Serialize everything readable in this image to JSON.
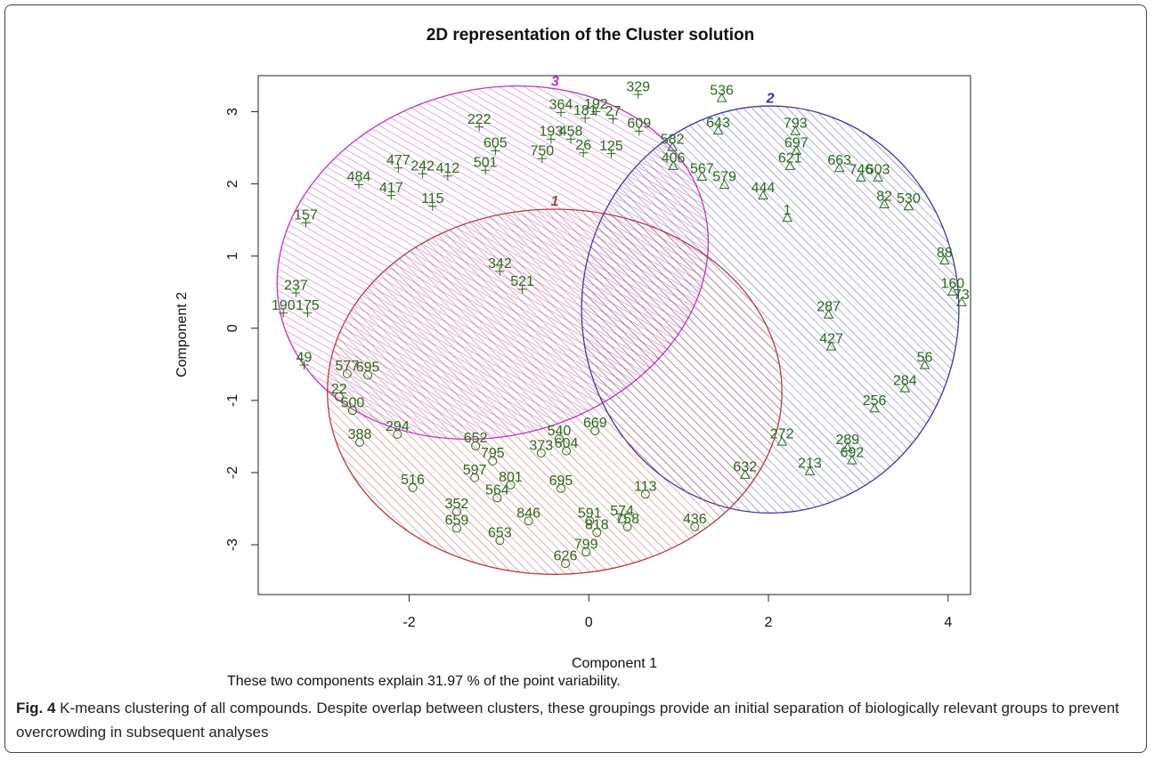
{
  "chart_data": {
    "type": "scatter",
    "title": "2D representation of the Cluster solution",
    "xlabel": "Component 1",
    "ylabel": "Component 2",
    "subtitle": "These two components explain 31.97 % of the point variability.",
    "xlim": [
      -3.68,
      4.25
    ],
    "ylim": [
      -3.69,
      3.5
    ],
    "xticks": [
      -2,
      0,
      2,
      4
    ],
    "yticks": [
      -3,
      -2,
      -1,
      0,
      1,
      2,
      3
    ],
    "point_color": "#2a6a1a",
    "series": [
      {
        "name": "3",
        "color": "#c232c2",
        "marker": "plus",
        "ellipse": {
          "cx": -1.07,
          "cy": 0.91,
          "rx": 2.43,
          "ry": 2.4,
          "angle": -15
        },
        "x": [
          0.55,
          -1.22,
          -0.31,
          0.08,
          -0.04,
          0.27,
          -1.04,
          -0.52,
          -0.42,
          -0.2,
          -0.06,
          -2.12,
          -1.85,
          -1.57,
          -1.15,
          -2.56,
          -2.2,
          -1.74,
          -3.15,
          -3.4,
          -3.13,
          -3.17,
          -3.26,
          -0.99,
          -0.74,
          0.25,
          0.56
        ],
        "y": [
          3.24,
          2.79,
          2.99,
          3.0,
          2.91,
          2.9,
          2.46,
          2.35,
          2.62,
          2.62,
          2.43,
          2.22,
          2.14,
          2.11,
          2.19,
          1.99,
          1.84,
          1.69,
          1.46,
          0.21,
          0.21,
          -0.51,
          0.49,
          0.79,
          0.54,
          2.42,
          2.73
        ],
        "labels": [
          "329",
          "222",
          "364",
          "192",
          "181",
          "27",
          "605",
          "750",
          "193",
          "458",
          "26",
          "477",
          "242",
          "412",
          "501",
          "484",
          "417",
          "115",
          "157",
          "190",
          "175",
          "49",
          "237",
          "342",
          "521",
          "125",
          "609"
        ]
      },
      {
        "name": "2",
        "color": "#3a35a8",
        "marker": "triangle",
        "ellipse": {
          "cx": 2.02,
          "cy": 0.26,
          "rx": 2.1,
          "ry": 2.82,
          "angle": 0
        },
        "x": [
          1.48,
          1.44,
          2.3,
          2.31,
          2.24,
          2.79,
          3.03,
          3.22,
          1.26,
          1.94,
          3.56,
          0.93,
          0.94,
          3.29,
          3.96,
          4.05,
          4.15,
          3.74,
          3.52,
          2.93,
          2.46,
          2.88,
          2.15,
          3.18,
          2.7,
          1.74,
          2.67,
          1.51,
          2.21
        ],
        "y": [
          3.19,
          2.74,
          2.73,
          2.46,
          2.25,
          2.22,
          2.09,
          2.09,
          2.1,
          1.84,
          1.69,
          2.51,
          2.25,
          1.72,
          0.94,
          0.51,
          0.36,
          -0.51,
          -0.83,
          -1.83,
          -1.98,
          -1.65,
          -1.57,
          -1.11,
          -0.25,
          -2.03,
          0.19,
          1.99,
          1.53
        ],
        "labels": [
          "536",
          "643",
          "793",
          "697",
          "621",
          "663",
          "746",
          "503",
          "567",
          "444",
          "530",
          "582",
          "406",
          "82",
          "88",
          "160",
          "73",
          "56",
          "284",
          "692",
          "213",
          "289",
          "272",
          "256",
          "427",
          "632",
          "287",
          "579",
          "1"
        ]
      },
      {
        "name": "1",
        "color": "#b8383a",
        "marker": "circle",
        "ellipse": {
          "cx": -0.38,
          "cy": -0.88,
          "rx": 2.53,
          "ry": 2.53,
          "angle": 0
        },
        "x": [
          -2.55,
          -1.96,
          -1.47,
          -1.47,
          -0.99,
          -0.26,
          -0.03,
          1.18,
          0.63,
          0.01,
          0.37,
          0.43,
          0.09,
          -0.67,
          -1.27,
          -0.87,
          -0.25,
          -1.26,
          -0.33,
          -2.13,
          -2.63,
          -2.78,
          -2.69,
          -2.46,
          0.07,
          -1.07,
          -0.53,
          -0.31,
          -1.02
        ],
        "y": [
          -1.58,
          -2.21,
          -2.54,
          -2.77,
          -2.94,
          -3.26,
          -3.1,
          -2.75,
          -2.3,
          -2.67,
          -2.64,
          -2.75,
          -2.83,
          -2.67,
          -2.07,
          -2.17,
          -1.7,
          -1.63,
          -1.53,
          -1.47,
          -1.14,
          -0.95,
          -0.63,
          -0.65,
          -1.42,
          -1.84,
          -1.73,
          -2.22,
          -2.35
        ],
        "labels": [
          "388",
          "516",
          "352",
          "659",
          "653",
          "626",
          "799",
          "436",
          "113",
          "591",
          "574",
          "758",
          "818",
          "846",
          "597",
          "801",
          "604",
          "652",
          "540",
          "294",
          "500",
          "22",
          "577",
          "695",
          "669",
          "795",
          "373",
          "695",
          "564"
        ]
      }
    ]
  },
  "caption": {
    "label": "Fig. 4",
    "text": "K-means clustering of all compounds. Despite overlap between clusters, these groupings provide an initial separation of biologically relevant groups to prevent overcrowding in subsequent analyses"
  }
}
